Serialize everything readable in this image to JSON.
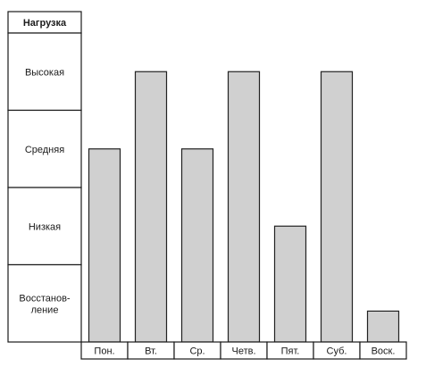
{
  "chart_data": {
    "type": "bar",
    "ylabel": "Нагрузка",
    "levels": [
      "Высокая",
      "Средняя",
      "Низкая",
      "Восстанов-ление"
    ],
    "levels_lines": [
      [
        "Высокая"
      ],
      [
        "Средняя"
      ],
      [
        "Низкая"
      ],
      [
        "Восстанов-",
        "ление"
      ]
    ],
    "categories": [
      "Пон.",
      "Вт.",
      "Ср.",
      "Четв.",
      "Пят.",
      "Суб.",
      "Воск."
    ],
    "values": [
      2.5,
      3.5,
      2.5,
      3.5,
      1.5,
      3.5,
      0.4
    ],
    "ylim": [
      0,
      4
    ],
    "grid": false,
    "bar_color": "#d0d0d0",
    "bar_edge_color": "#222222"
  }
}
